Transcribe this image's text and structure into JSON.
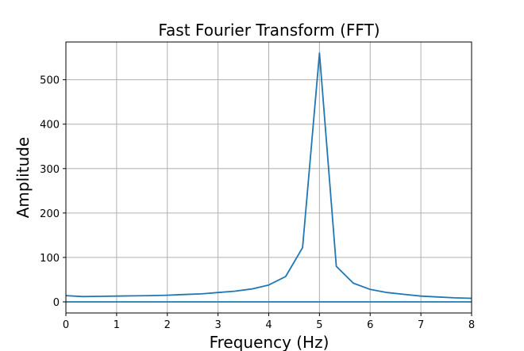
{
  "chart_data": {
    "type": "line",
    "title": "Fast Fourier Transform (FFT)",
    "xlabel": "Frequency (Hz)",
    "ylabel": "Amplitude",
    "xlim": [
      0,
      8
    ],
    "ylim": [
      -25,
      585
    ],
    "xticks": [
      0,
      1,
      2,
      3,
      4,
      5,
      6,
      7,
      8
    ],
    "yticks": [
      0,
      100,
      200,
      300,
      400,
      500
    ],
    "grid": true,
    "series": [
      {
        "color": "#1f77b4",
        "x": [
          0,
          0.333,
          0.667,
          1.0,
          1.333,
          1.667,
          2.0,
          2.333,
          2.667,
          3.0,
          3.333,
          3.667,
          4.0,
          4.333,
          4.667,
          5.0,
          5.333,
          5.667,
          6.0,
          6.333,
          6.667,
          7.0,
          7.333,
          7.667,
          8.0
        ],
        "y": [
          14,
          12,
          12.5,
          13,
          13.5,
          14,
          15,
          16.5,
          18,
          21,
          24,
          29,
          38,
          57,
          122,
          560,
          80,
          42,
          28,
          21,
          17,
          13,
          11,
          9,
          8
        ]
      },
      {
        "color": "#1f77b4",
        "x": [
          0,
          8
        ],
        "y": [
          0,
          0
        ]
      }
    ]
  }
}
